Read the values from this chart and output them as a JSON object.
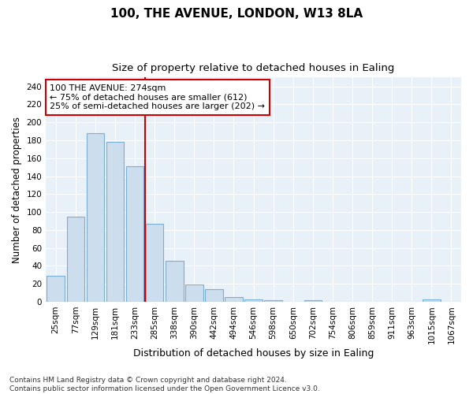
{
  "title1": "100, THE AVENUE, LONDON, W13 8LA",
  "title2": "Size of property relative to detached houses in Ealing",
  "xlabel": "Distribution of detached houses by size in Ealing",
  "ylabel": "Number of detached properties",
  "bar_labels": [
    "25sqm",
    "77sqm",
    "129sqm",
    "181sqm",
    "233sqm",
    "285sqm",
    "338sqm",
    "390sqm",
    "442sqm",
    "494sqm",
    "546sqm",
    "598sqm",
    "650sqm",
    "702sqm",
    "754sqm",
    "806sqm",
    "859sqm",
    "911sqm",
    "963sqm",
    "1015sqm",
    "1067sqm"
  ],
  "bar_values": [
    29,
    95,
    188,
    178,
    151,
    87,
    46,
    19,
    14,
    5,
    3,
    2,
    0,
    2,
    0,
    0,
    0,
    0,
    0,
    3,
    0
  ],
  "bar_color": "#ccdded",
  "bar_edge_color": "#7aafd4",
  "vline_x_idx": 4.5,
  "vline_color": "#cc0000",
  "annotation_text": "100 THE AVENUE: 274sqm\n← 75% of detached houses are smaller (612)\n25% of semi-detached houses are larger (202) →",
  "annotation_box_color": "white",
  "annotation_box_edge": "#cc0000",
  "ylim": [
    0,
    250
  ],
  "yticks": [
    0,
    20,
    40,
    60,
    80,
    100,
    120,
    140,
    160,
    180,
    200,
    220,
    240
  ],
  "footer": "Contains HM Land Registry data © Crown copyright and database right 2024.\nContains public sector information licensed under the Open Government Licence v3.0.",
  "background_color": "#e8f0f8",
  "grid_color": "white",
  "title1_fontsize": 11,
  "title2_fontsize": 9.5,
  "xlabel_fontsize": 9,
  "ylabel_fontsize": 8.5,
  "tick_fontsize": 7.5,
  "annotation_fontsize": 8,
  "footer_fontsize": 6.5
}
